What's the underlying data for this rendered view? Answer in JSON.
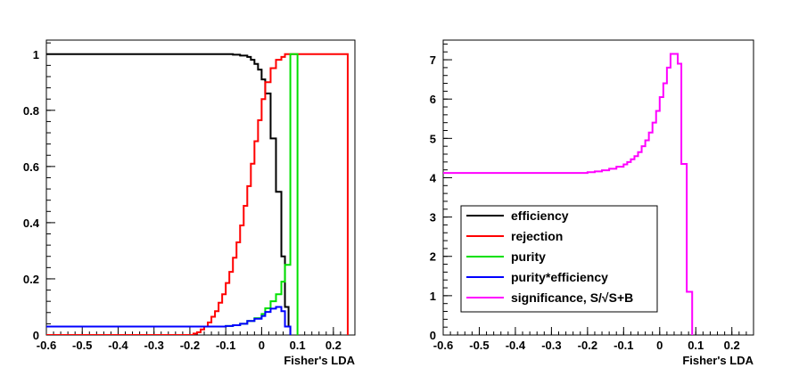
{
  "chart_data": [
    {
      "type": "line",
      "step": true,
      "xlabel": "Fisher's LDA",
      "ylabel": "",
      "xlim": [
        -0.6,
        0.26
      ],
      "ylim": [
        0,
        1.05
      ],
      "xticks": [
        -0.6,
        -0.5,
        -0.4,
        -0.3,
        -0.2,
        -0.1,
        0,
        0.1,
        0.2
      ],
      "xtick_labels": [
        "-0.6",
        "-0.5",
        "-0.4",
        "-0.3",
        "-0.2",
        "-0.1",
        "0",
        "0.1",
        "0.2"
      ],
      "yticks": [
        0,
        0.2,
        0.4,
        0.6,
        0.8,
        1
      ],
      "ytick_labels": [
        "0",
        "0.2",
        "0.4",
        "0.6",
        "0.8",
        "1"
      ],
      "grid": false,
      "series": [
        {
          "name": "efficiency",
          "color": "#000000",
          "points": [
            [
              -0.6,
              1
            ],
            [
              -0.1,
              1
            ],
            [
              -0.08,
              0.998
            ],
            [
              -0.06,
              0.995
            ],
            [
              -0.04,
              0.99
            ],
            [
              -0.03,
              0.98
            ],
            [
              -0.02,
              0.965
            ],
            [
              -0.01,
              0.945
            ],
            [
              0,
              0.91
            ],
            [
              0.01,
              0.86
            ],
            [
              0.025,
              0.7
            ],
            [
              0.04,
              0.51
            ],
            [
              0.055,
              0.28
            ],
            [
              0.065,
              0.1
            ],
            [
              0.075,
              0.03
            ],
            [
              0.08,
              0
            ]
          ]
        },
        {
          "name": "rejection",
          "color": "#ff0000",
          "points": [
            [
              -0.6,
              0
            ],
            [
              -0.2,
              0
            ],
            [
              -0.19,
              0.005
            ],
            [
              -0.18,
              0.01
            ],
            [
              -0.17,
              0.02
            ],
            [
              -0.16,
              0.03
            ],
            [
              -0.15,
              0.045
            ],
            [
              -0.14,
              0.065
            ],
            [
              -0.13,
              0.085
            ],
            [
              -0.12,
              0.115
            ],
            [
              -0.11,
              0.145
            ],
            [
              -0.1,
              0.185
            ],
            [
              -0.09,
              0.225
            ],
            [
              -0.08,
              0.275
            ],
            [
              -0.07,
              0.33
            ],
            [
              -0.06,
              0.39
            ],
            [
              -0.05,
              0.46
            ],
            [
              -0.04,
              0.53
            ],
            [
              -0.03,
              0.61
            ],
            [
              -0.02,
              0.69
            ],
            [
              -0.01,
              0.765
            ],
            [
              0,
              0.84
            ],
            [
              0.01,
              0.9
            ],
            [
              0.025,
              0.95
            ],
            [
              0.04,
              0.98
            ],
            [
              0.055,
              0.99
            ],
            [
              0.065,
              1
            ],
            [
              0.24,
              0
            ]
          ]
        },
        {
          "name": "purity",
          "color": "#00e000",
          "points": [
            [
              -0.6,
              0.03
            ],
            [
              -0.2,
              0.03
            ],
            [
              -0.15,
              0.03
            ],
            [
              -0.1,
              0.032
            ],
            [
              -0.08,
              0.035
            ],
            [
              -0.06,
              0.04
            ],
            [
              -0.04,
              0.05
            ],
            [
              -0.02,
              0.06
            ],
            [
              0,
              0.075
            ],
            [
              0.01,
              0.095
            ],
            [
              0.025,
              0.12
            ],
            [
              0.04,
              0.145
            ],
            [
              0.055,
              0.19
            ],
            [
              0.065,
              0.25
            ],
            [
              0.08,
              1
            ],
            [
              0.1,
              0
            ]
          ]
        },
        {
          "name": "purity*efficiency",
          "color": "#0000ff",
          "points": [
            [
              -0.6,
              0.03
            ],
            [
              -0.2,
              0.03
            ],
            [
              -0.15,
              0.03
            ],
            [
              -0.1,
              0.032
            ],
            [
              -0.08,
              0.035
            ],
            [
              -0.06,
              0.04
            ],
            [
              -0.04,
              0.05
            ],
            [
              -0.02,
              0.058
            ],
            [
              0,
              0.068
            ],
            [
              0.01,
              0.082
            ],
            [
              0.025,
              0.094
            ],
            [
              0.04,
              0.1
            ],
            [
              0.055,
              0.085
            ],
            [
              0.065,
              0.03
            ],
            [
              0.08,
              0
            ]
          ]
        }
      ]
    },
    {
      "type": "line",
      "step": true,
      "xlabel": "Fisher's LDA",
      "ylabel": "",
      "xlim": [
        -0.6,
        0.26
      ],
      "ylim": [
        0,
        7.5
      ],
      "xticks": [
        -0.6,
        -0.5,
        -0.4,
        -0.3,
        -0.2,
        -0.1,
        0,
        0.1,
        0.2
      ],
      "xtick_labels": [
        "-0.6",
        "-0.5",
        "-0.4",
        "-0.3",
        "-0.2",
        "-0.1",
        "0",
        "0.1",
        "0.2"
      ],
      "yticks": [
        0,
        1,
        2,
        3,
        4,
        5,
        6,
        7
      ],
      "ytick_labels": [
        "0",
        "1",
        "2",
        "3",
        "4",
        "5",
        "6",
        "7"
      ],
      "grid": false,
      "series": [
        {
          "name": "significance, S/√S+B",
          "color": "#ff00ff",
          "points": [
            [
              -0.6,
              4.12
            ],
            [
              -0.2,
              4.14
            ],
            [
              -0.18,
              4.16
            ],
            [
              -0.16,
              4.19
            ],
            [
              -0.14,
              4.23
            ],
            [
              -0.12,
              4.28
            ],
            [
              -0.1,
              4.34
            ],
            [
              -0.09,
              4.4
            ],
            [
              -0.08,
              4.47
            ],
            [
              -0.07,
              4.55
            ],
            [
              -0.06,
              4.65
            ],
            [
              -0.05,
              4.8
            ],
            [
              -0.04,
              4.95
            ],
            [
              -0.03,
              5.15
            ],
            [
              -0.02,
              5.4
            ],
            [
              -0.01,
              5.7
            ],
            [
              0,
              6.05
            ],
            [
              0.01,
              6.4
            ],
            [
              0.02,
              6.8
            ],
            [
              0.03,
              7.15
            ],
            [
              0.05,
              6.9
            ],
            [
              0.06,
              4.35
            ],
            [
              0.075,
              1.1
            ],
            [
              0.09,
              0
            ]
          ]
        }
      ]
    }
  ],
  "legend": {
    "placement": "lower-left",
    "entries": [
      {
        "label": "efficiency",
        "color": "#000000"
      },
      {
        "label": "rejection",
        "color": "#ff0000"
      },
      {
        "label": "purity",
        "color": "#00e000"
      },
      {
        "label": "purity*efficiency",
        "color": "#0000ff"
      },
      {
        "label": "significance, S/√S+B",
        "color": "#ff00ff"
      }
    ]
  }
}
